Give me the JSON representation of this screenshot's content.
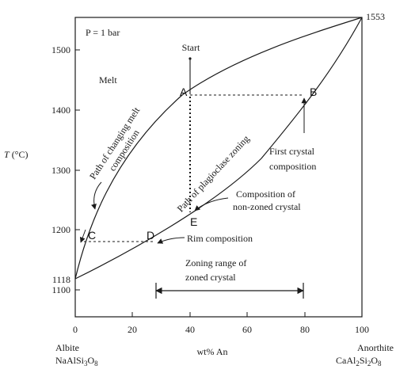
{
  "diagram": {
    "pressure_label": "P = 1 bar",
    "temperature_axis": {
      "symbol": "T",
      "unit": "(°C)",
      "ticks": [
        "1100",
        "1200",
        "1300",
        "1400",
        "1500"
      ],
      "endpoint_low": "1118",
      "endpoint_high": "1553"
    },
    "composition_axis": {
      "label": "wt% An",
      "ticks": [
        "0",
        "20",
        "40",
        "60",
        "80",
        "100"
      ]
    },
    "end_members": {
      "left_name": "Albite",
      "left_formula": "NaAlSi3O8",
      "right_name": "Anorthite",
      "right_formula": "CaAl2Si2O8"
    },
    "field_label": "Melt",
    "start_label": "Start",
    "points": {
      "A": "A",
      "B": "B",
      "C": "C",
      "D": "D",
      "E": "E"
    },
    "annotations": {
      "melt_path_line1": "Path of changing melt",
      "melt_path_line2": "composition",
      "zoning_path": "Path of plagioclase zoning",
      "first_crystal_line1": "First crystal",
      "first_crystal_line2": "composition",
      "nonzoned_line1": "Composition of",
      "nonzoned_line2": "non-zoned crystal",
      "rim": "Rim composition",
      "zoning_range_line1": "Zoning range of",
      "zoning_range_line2": "zoned crystal"
    },
    "key_points_data": {
      "start": {
        "wt_pct_an": 40,
        "temp_c": 1490
      },
      "A": {
        "wt_pct_an": 40,
        "temp_c": 1425
      },
      "B": {
        "wt_pct_an": 79,
        "temp_c": 1425
      },
      "C": {
        "wt_pct_an": 3,
        "temp_c": 1180
      },
      "D": {
        "wt_pct_an": 28,
        "temp_c": 1180
      },
      "E": {
        "wt_pct_an": 40,
        "temp_c": 1225
      }
    },
    "zoning_range_an": [
      28,
      79
    ],
    "colors": {
      "ink": "#1a1a1a",
      "background": "#ffffff"
    }
  }
}
